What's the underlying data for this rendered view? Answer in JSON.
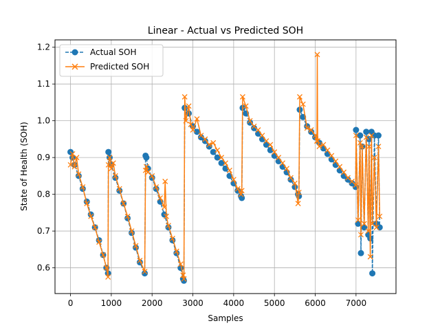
{
  "chart_data": {
    "type": "line",
    "title": "Linear - Actual vs Predicted SOH",
    "xlabel": "Samples",
    "ylabel": "State of Health (SOH)",
    "xlim": [
      -380,
      7980
    ],
    "ylim": [
      0.53,
      1.22
    ],
    "xticks": [
      0,
      1000,
      2000,
      3000,
      4000,
      5000,
      6000,
      7000
    ],
    "yticks": [
      0.6,
      0.7,
      0.8,
      0.9,
      1.0,
      1.1,
      1.2
    ],
    "xtick_labels": [
      "0",
      "1000",
      "2000",
      "3000",
      "4000",
      "5000",
      "6000",
      "7000"
    ],
    "ytick_labels": [
      "0.6",
      "0.7",
      "0.8",
      "0.9",
      "1.0",
      "1.1",
      "1.2"
    ],
    "grid": true,
    "legend_position": "top-left",
    "colors": {
      "actual": "#1f77b4",
      "predicted": "#ff7f0e"
    },
    "series": [
      {
        "name": "Actual SOH",
        "style": "dashed line with circle markers",
        "color": "#1f77b4",
        "x": [
          0,
          50,
          100,
          200,
          300,
          400,
          500,
          600,
          700,
          800,
          880,
          920,
          930,
          960,
          1000,
          1100,
          1200,
          1300,
          1400,
          1500,
          1600,
          1700,
          1820,
          1840,
          1860,
          1900,
          2000,
          2100,
          2200,
          2300,
          2400,
          2500,
          2600,
          2700,
          2760,
          2780,
          2800,
          2900,
          3000,
          3100,
          3200,
          3300,
          3400,
          3500,
          3600,
          3700,
          3800,
          3900,
          4000,
          4100,
          4180,
          4200,
          4220,
          4300,
          4400,
          4500,
          4600,
          4700,
          4800,
          4900,
          5000,
          5100,
          5200,
          5300,
          5400,
          5500,
          5580,
          5600,
          5620,
          5700,
          5800,
          5900,
          6000,
          6100,
          6200,
          6300,
          6400,
          6500,
          6600,
          6700,
          6800,
          6900,
          6990,
          7000,
          7050,
          7100,
          7120,
          7150,
          7200,
          7250,
          7300,
          7320,
          7350,
          7380,
          7400,
          7450,
          7500,
          7550,
          7580
        ],
        "y": [
          0.915,
          0.9,
          0.88,
          0.85,
          0.815,
          0.78,
          0.745,
          0.71,
          0.675,
          0.635,
          0.6,
          0.585,
          0.915,
          0.9,
          0.88,
          0.845,
          0.81,
          0.775,
          0.735,
          0.695,
          0.655,
          0.615,
          0.585,
          0.905,
          0.9,
          0.87,
          0.845,
          0.815,
          0.78,
          0.745,
          0.71,
          0.675,
          0.64,
          0.6,
          0.57,
          0.565,
          1.035,
          1.02,
          0.985,
          0.97,
          0.955,
          0.945,
          0.93,
          0.915,
          0.9,
          0.885,
          0.87,
          0.85,
          0.83,
          0.81,
          0.795,
          0.79,
          1.035,
          1.02,
          0.995,
          0.98,
          0.965,
          0.95,
          0.935,
          0.92,
          0.905,
          0.89,
          0.875,
          0.86,
          0.84,
          0.82,
          0.8,
          0.795,
          1.03,
          1.01,
          0.985,
          0.97,
          0.955,
          0.94,
          0.925,
          0.91,
          0.895,
          0.88,
          0.865,
          0.85,
          0.84,
          0.83,
          0.82,
          0.975,
          0.72,
          0.96,
          0.64,
          0.93,
          0.71,
          0.97,
          0.69,
          0.95,
          0.68,
          0.97,
          0.585,
          0.96,
          0.72,
          0.96,
          0.71
        ]
      },
      {
        "name": "Predicted SOH",
        "style": "solid line with x markers",
        "color": "#ff7f0e",
        "x": [
          0,
          50,
          100,
          150,
          200,
          300,
          400,
          500,
          600,
          700,
          800,
          880,
          920,
          930,
          960,
          1000,
          1050,
          1100,
          1200,
          1300,
          1400,
          1500,
          1600,
          1700,
          1820,
          1840,
          1860,
          1900,
          2000,
          2100,
          2200,
          2300,
          2320,
          2350,
          2400,
          2500,
          2600,
          2700,
          2760,
          2780,
          2800,
          2830,
          2900,
          2950,
          3000,
          3100,
          3200,
          3300,
          3400,
          3500,
          3600,
          3700,
          3800,
          3900,
          4000,
          4100,
          4180,
          4200,
          4220,
          4300,
          4400,
          4500,
          4600,
          4700,
          4800,
          4900,
          5000,
          5100,
          5200,
          5300,
          5400,
          5500,
          5580,
          5600,
          5620,
          5700,
          5800,
          5900,
          6000,
          6040,
          6050,
          6060,
          6100,
          6200,
          6300,
          6400,
          6500,
          6600,
          6700,
          6800,
          6900,
          6990,
          7000,
          7050,
          7100,
          7120,
          7150,
          7200,
          7250,
          7300,
          7320,
          7350,
          7380,
          7400,
          7450,
          7500,
          7550,
          7580
        ],
        "y": [
          0.88,
          0.91,
          0.875,
          0.9,
          0.855,
          0.82,
          0.775,
          0.74,
          0.71,
          0.67,
          0.635,
          0.6,
          0.575,
          0.88,
          0.9,
          0.87,
          0.885,
          0.85,
          0.815,
          0.775,
          0.74,
          0.7,
          0.66,
          0.62,
          0.59,
          0.865,
          0.875,
          0.86,
          0.85,
          0.82,
          0.79,
          0.765,
          0.835,
          0.74,
          0.715,
          0.68,
          0.645,
          0.61,
          0.58,
          0.57,
          1.065,
          1.0,
          1.04,
          0.99,
          0.975,
          1.005,
          0.96,
          0.95,
          0.935,
          0.94,
          0.92,
          0.9,
          0.885,
          0.865,
          0.84,
          0.815,
          0.8,
          0.81,
          1.065,
          1.04,
          1.0,
          0.985,
          0.975,
          0.96,
          0.945,
          0.935,
          0.915,
          0.9,
          0.885,
          0.87,
          0.845,
          0.83,
          0.775,
          0.805,
          1.065,
          1.045,
          0.98,
          0.975,
          0.96,
          0.945,
          1.18,
          0.945,
          0.93,
          0.935,
          0.92,
          0.905,
          0.89,
          0.875,
          0.86,
          0.845,
          0.835,
          0.825,
          0.96,
          0.73,
          0.94,
          0.69,
          0.93,
          0.72,
          0.955,
          0.7,
          0.93,
          0.63,
          0.96,
          0.72,
          0.9,
          0.71,
          0.93,
          0.74
        ]
      }
    ]
  }
}
